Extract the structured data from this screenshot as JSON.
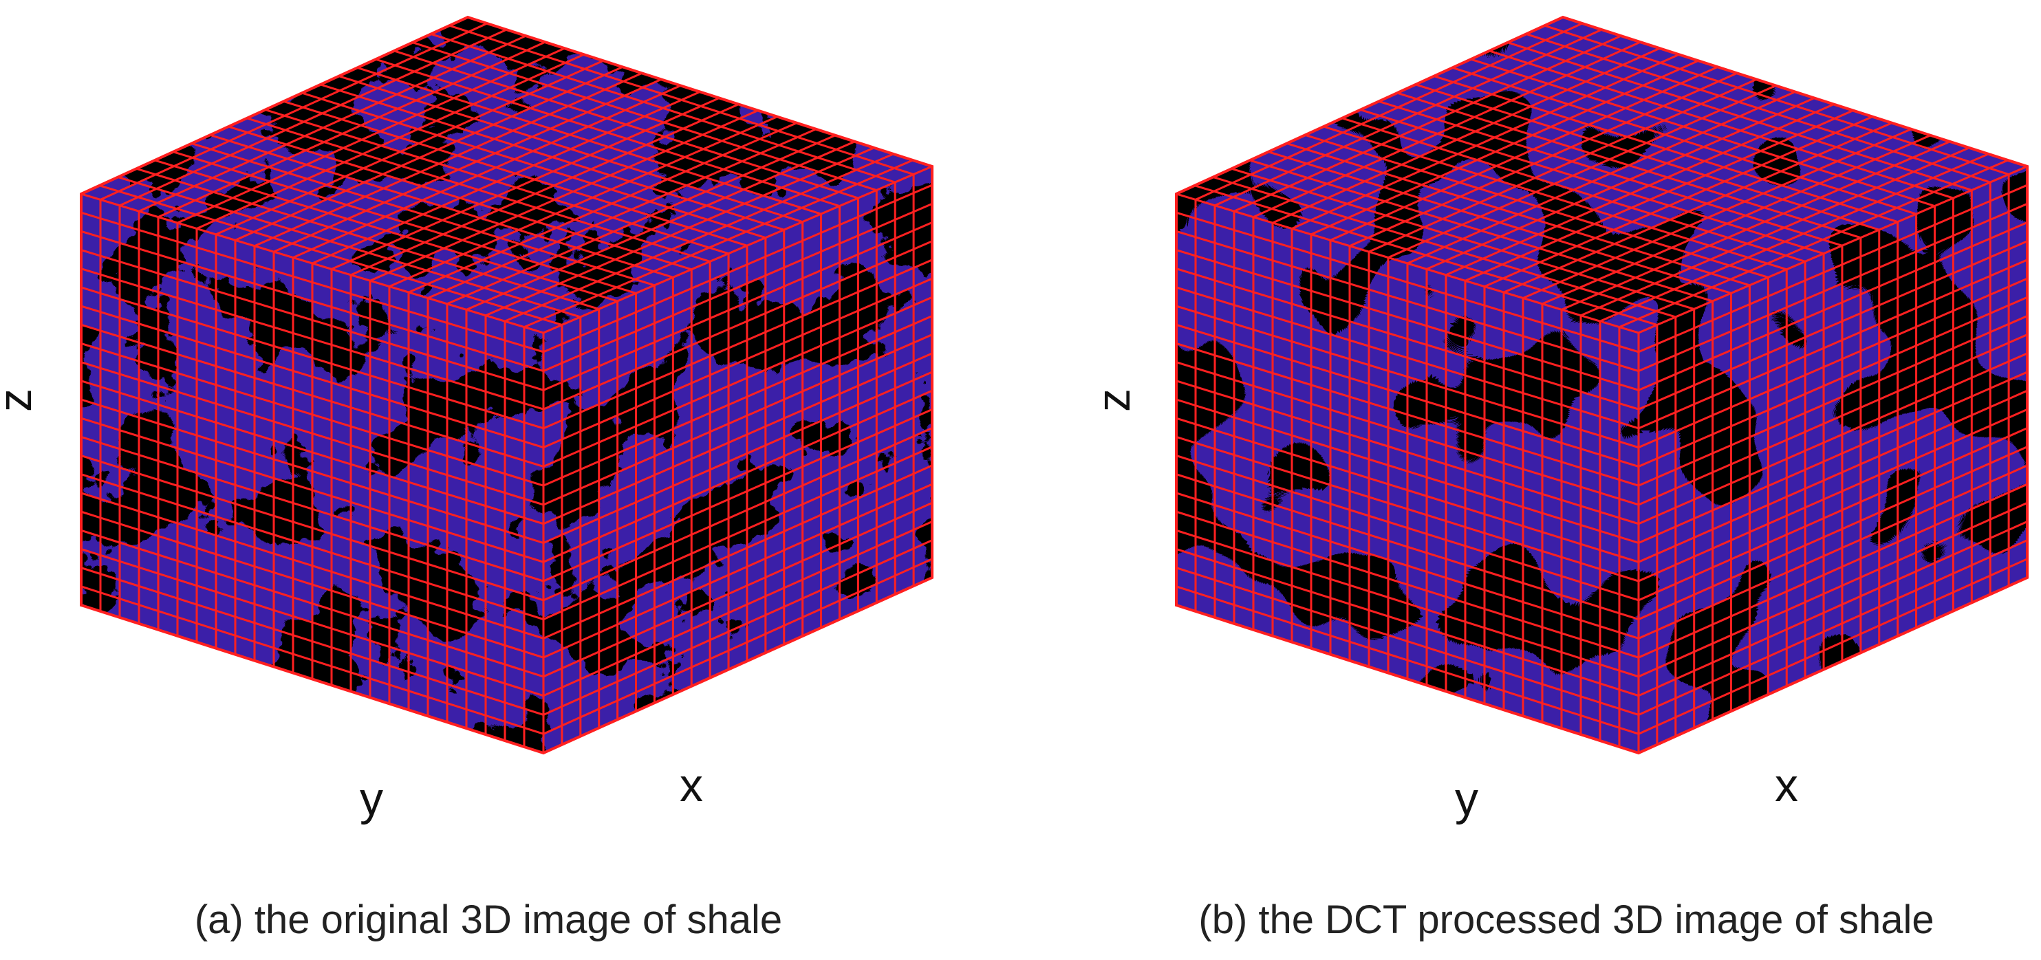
{
  "colors": {
    "solid_phase": "#3b1fa8",
    "pore_phase": "#f7f200",
    "grid": "#ff2020",
    "text": "#111111"
  },
  "panels": [
    {
      "name": "original",
      "axis_labels": {
        "z": "z",
        "y": "y",
        "x": "x"
      },
      "caption": "(a) the original 3D image of shale",
      "texture": "fine-grained, noisy speckled pore network"
    },
    {
      "name": "dct-processed",
      "axis_labels": {
        "z": "z",
        "y": "y",
        "x": "x"
      },
      "caption": "(b) the DCT processed 3D image of shale",
      "texture": "smoothed, rounded pore network"
    }
  ]
}
